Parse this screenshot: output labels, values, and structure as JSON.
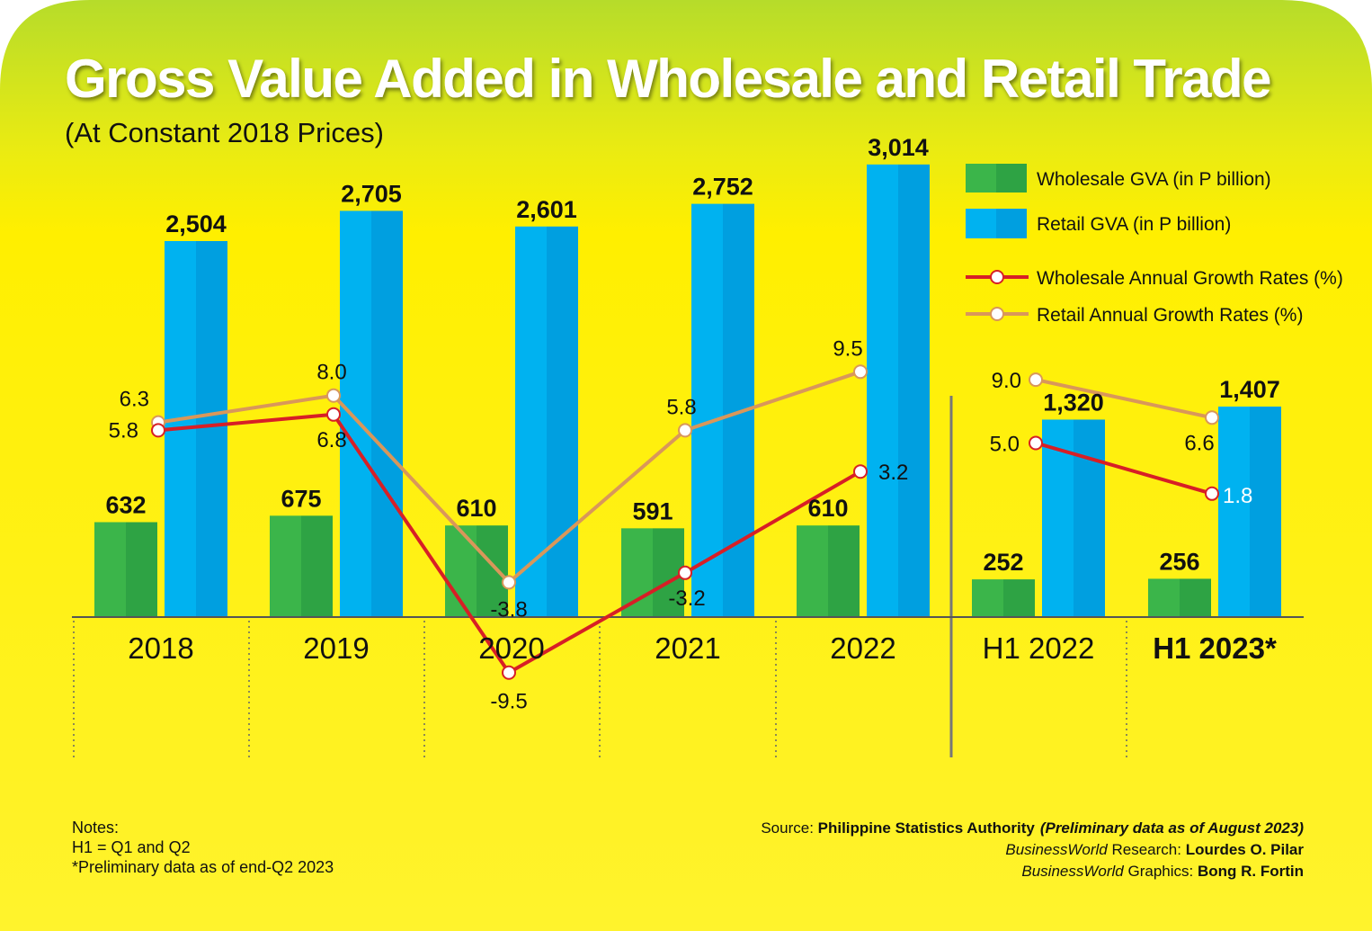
{
  "chart_data": {
    "type": "bar",
    "title": "Gross Value Added in Wholesale and Retail Trade",
    "subtitle": "(At Constant 2018 Prices)",
    "categories": [
      "2018",
      "2019",
      "2020",
      "2021",
      "2022",
      "H1 2022",
      "H1 2023*"
    ],
    "series": [
      {
        "name": "Wholesale GVA (in P billion)",
        "kind": "bar",
        "color": "#3bb54a",
        "values": [
          632,
          675,
          610,
          591,
          610,
          252,
          256
        ],
        "labels": [
          "632",
          "675",
          "610",
          "591",
          "610",
          "252",
          "256"
        ]
      },
      {
        "name": "Retail GVA (in P billion)",
        "kind": "bar",
        "color": "#00aeef",
        "values": [
          2504,
          2705,
          2601,
          2752,
          3014,
          1320,
          1407
        ],
        "labels": [
          "2,504",
          "2,705",
          "2,601",
          "2,752",
          "3,014",
          "1,320",
          "1,407"
        ]
      },
      {
        "name": "Wholesale Annual Growth Rates (%)",
        "kind": "line",
        "color": "#d71f26",
        "values": [
          5.8,
          6.8,
          -9.5,
          -3.2,
          3.2,
          5.0,
          1.8
        ],
        "labels": [
          "5.8",
          "6.8",
          "-9.5",
          "-3.2",
          "3.2",
          "5.0",
          "1.8"
        ]
      },
      {
        "name": "Retail Annual Growth Rates (%)",
        "kind": "line",
        "color": "#d9975a",
        "values": [
          6.3,
          8.0,
          -3.8,
          5.8,
          9.5,
          9.0,
          6.6
        ],
        "labels": [
          "6.3",
          "8.0",
          "-3.8",
          "5.8",
          "9.5",
          "9.0",
          "6.6"
        ]
      }
    ],
    "legend_position": "top-right",
    "grid": false
  },
  "notes": {
    "heading": "Notes:",
    "line1": "H1 = Q1 and Q2",
    "line2": "*Preliminary data as of end-Q2 2023"
  },
  "credits": {
    "source_prefix": "Source: ",
    "source_name": "Philippine Statistics Authority",
    "source_note": "(Preliminary data as of August 2023)",
    "research_brand": "BusinessWorld",
    "research_role": " Research: ",
    "research_name": "Lourdes O. Pilar",
    "graphics_brand": "BusinessWorld",
    "graphics_role": " Graphics: ",
    "graphics_name": "Bong R. Fortin"
  },
  "colors": {
    "background_top": "#b6dc2a",
    "background_mid": "#ffee00",
    "background_bottom": "#fff32d",
    "wholesale_bar": "#3bb54a",
    "retail_bar": "#00aeef",
    "wholesale_line": "#d71f26",
    "retail_line": "#d9975a"
  }
}
